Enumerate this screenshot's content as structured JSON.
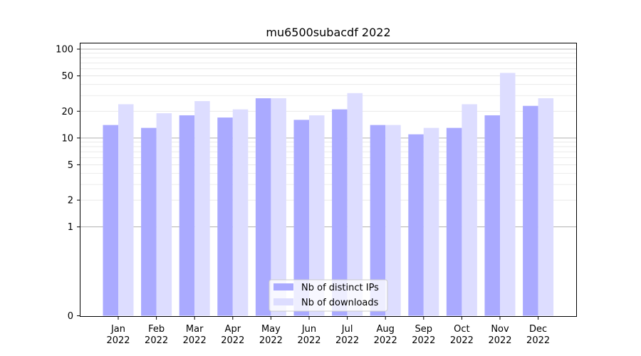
{
  "chart_data": {
    "type": "bar",
    "title": "mu6500subacdf 2022",
    "xlabel": "",
    "ylabel": "",
    "yscale": "symlog",
    "ylim": [
      0,
      120
    ],
    "yticks": [
      0,
      1,
      2,
      5,
      10,
      20,
      50,
      100
    ],
    "grid": "horizontal",
    "legend_position": "bottom-center",
    "categories": [
      "Jan\n2022",
      "Feb\n2022",
      "Mar\n2022",
      "Apr\n2022",
      "May\n2022",
      "Jun\n2022",
      "Jul\n2022",
      "Aug\n2022",
      "Sep\n2022",
      "Oct\n2022",
      "Nov\n2022",
      "Dec\n2022"
    ],
    "series": [
      {
        "name": "Nb of distinct IPs",
        "color": "#aaaaff",
        "values": [
          14,
          13,
          18,
          17,
          28,
          16,
          21,
          14,
          11,
          13,
          18,
          23
        ]
      },
      {
        "name": "Nb of downloads",
        "color": "#ddddff",
        "values": [
          24,
          19,
          26,
          21,
          28,
          18,
          32,
          14,
          13,
          24,
          54,
          28
        ]
      }
    ]
  }
}
